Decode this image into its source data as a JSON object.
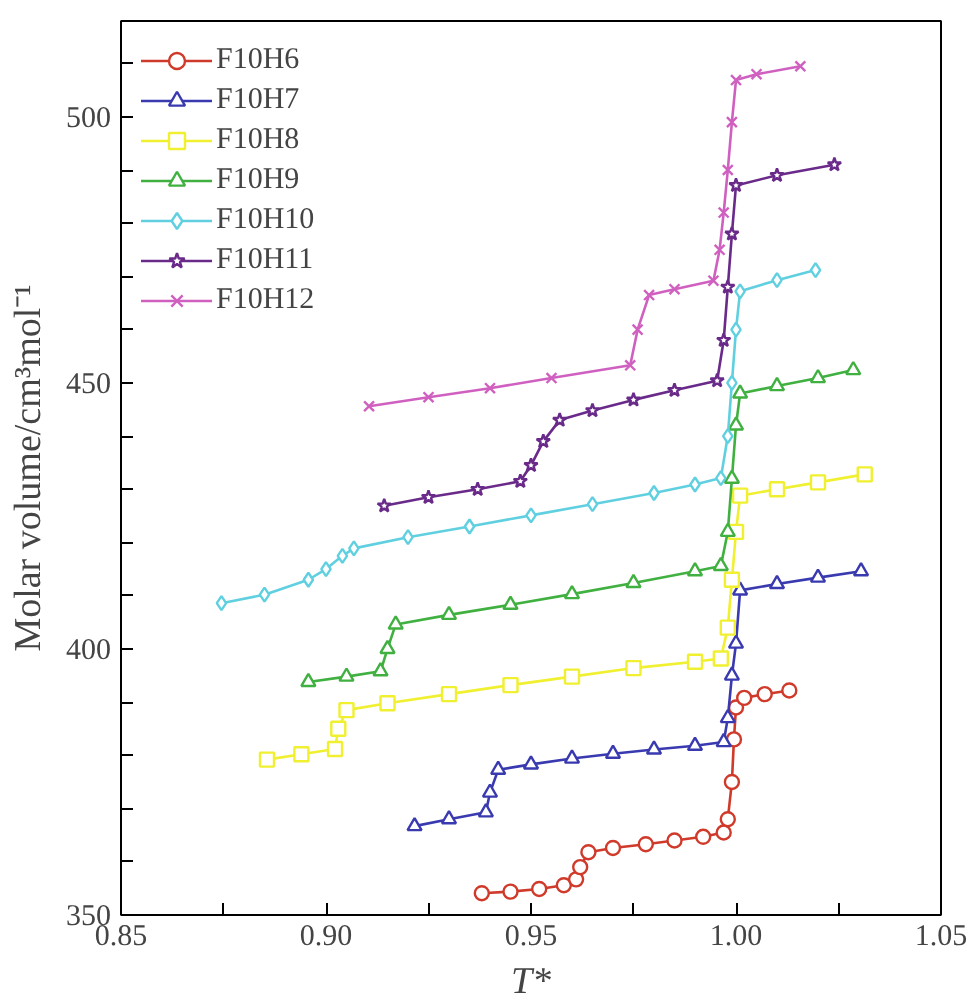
{
  "chart_data": {
    "type": "line",
    "xlabel": "T*",
    "ylabel": "Molar volume/cm³mol⁻¹",
    "xlim": [
      0.85,
      1.05
    ],
    "ylim": [
      350,
      518
    ],
    "xticks": [
      {
        "value": 0.85,
        "label": "0.85"
      },
      {
        "value": 0.875,
        "label": null
      },
      {
        "value": 0.9,
        "label": "0.90"
      },
      {
        "value": 0.925,
        "label": null
      },
      {
        "value": 0.95,
        "label": "0.95"
      },
      {
        "value": 0.975,
        "label": null
      },
      {
        "value": 1.0,
        "label": "1.00"
      },
      {
        "value": 1.025,
        "label": null
      },
      {
        "value": 1.05,
        "label": "1.05"
      }
    ],
    "yticks": [
      350,
      {
        "value": 360,
        "label": null
      },
      {
        "value": 370,
        "label": null
      },
      {
        "value": 380,
        "label": null
      },
      {
        "value": 390,
        "label": null
      },
      400,
      {
        "value": 410,
        "label": null
      },
      {
        "value": 420,
        "label": null
      },
      {
        "value": 430,
        "label": null
      },
      {
        "value": 440,
        "label": null
      },
      450,
      {
        "value": 460,
        "label": null
      },
      {
        "value": 470,
        "label": null
      },
      {
        "value": 480,
        "label": null
      },
      {
        "value": 490,
        "label": null
      },
      500,
      {
        "value": 510,
        "label": null
      }
    ],
    "legend": "top left",
    "grid": false,
    "series": [
      {
        "name": "F10H6",
        "color": "#d03a2a",
        "marker": "circle",
        "x": [
          0.938,
          0.945,
          0.952,
          0.958,
          0.961,
          0.962,
          0.964,
          0.97,
          0.978,
          0.985,
          0.992,
          0.997,
          0.998,
          0.999,
          0.9995,
          1.0,
          1.002,
          1.007,
          1.013
        ],
        "values": [
          354.1,
          354.4,
          354.9,
          355.6,
          356.7,
          359.0,
          361.8,
          362.6,
          363.3,
          364.0,
          364.7,
          365.5,
          368.0,
          375.0,
          383.0,
          389.0,
          390.8,
          391.5,
          392.2
        ]
      },
      {
        "name": "F10H7",
        "color": "#3a3ab0",
        "marker": "triangle",
        "x": [
          0.9216,
          0.93,
          0.939,
          0.94,
          0.942,
          0.95,
          0.96,
          0.97,
          0.98,
          0.99,
          0.997,
          0.998,
          0.999,
          1.0,
          1.001,
          1.01,
          1.02,
          1.0305
        ],
        "values": [
          366.7,
          368.0,
          369.3,
          373.0,
          377.3,
          378.3,
          379.4,
          380.3,
          381.1,
          381.8,
          382.5,
          387.0,
          395.0,
          401.0,
          411.0,
          412.2,
          413.4,
          414.6
        ]
      },
      {
        "name": "F10H8",
        "color": "#f0f030",
        "marker": "square",
        "x": [
          0.8856,
          0.894,
          0.9022,
          0.903,
          0.905,
          0.915,
          0.93,
          0.945,
          0.96,
          0.975,
          0.99,
          0.9963,
          0.998,
          0.999,
          1.0,
          1.001,
          1.01,
          1.02,
          1.0314
        ],
        "values": [
          379.2,
          380.2,
          381.2,
          385.0,
          388.5,
          389.8,
          391.5,
          393.2,
          394.8,
          396.4,
          397.6,
          398.2,
          404.0,
          413.0,
          422.0,
          428.8,
          430.0,
          431.3,
          432.8
        ]
      },
      {
        "name": "F10H9",
        "color": "#40b040",
        "marker": "triangle",
        "x": [
          0.8957,
          0.905,
          0.9133,
          0.915,
          0.917,
          0.93,
          0.945,
          0.96,
          0.975,
          0.99,
          0.9963,
          0.998,
          0.999,
          1.0,
          1.001,
          1.01,
          1.02,
          1.0286
        ],
        "values": [
          393.8,
          394.8,
          395.8,
          400.0,
          404.6,
          406.4,
          408.3,
          410.3,
          412.4,
          414.6,
          415.6,
          422.0,
          432.0,
          442.0,
          448.0,
          449.4,
          450.9,
          452.4
        ]
      },
      {
        "name": "F10H10",
        "color": "#60d0e0",
        "marker": "diamond",
        "x": [
          0.8745,
          0.885,
          0.8957,
          0.9,
          0.904,
          0.9068,
          0.92,
          0.935,
          0.95,
          0.965,
          0.98,
          0.99,
          0.9963,
          0.998,
          0.999,
          1.0,
          1.001,
          1.01,
          1.0194
        ],
        "values": [
          408.6,
          410.2,
          413.0,
          415.0,
          417.5,
          418.9,
          421.0,
          423.0,
          425.1,
          427.2,
          429.3,
          430.9,
          432.1,
          440.0,
          450.0,
          460.0,
          467.2,
          469.3,
          471.2
        ]
      },
      {
        "name": "F10H11",
        "color": "#6a2a8a",
        "marker": "star",
        "x": [
          0.9142,
          0.925,
          0.937,
          0.9474,
          0.95,
          0.953,
          0.957,
          0.965,
          0.975,
          0.985,
          0.9954,
          0.997,
          0.998,
          0.999,
          1.0,
          1.01,
          1.024
        ],
        "values": [
          426.9,
          428.5,
          430.0,
          431.5,
          434.5,
          439.0,
          443.0,
          444.8,
          446.8,
          448.6,
          450.4,
          458.0,
          468.0,
          478.0,
          487.1,
          489.0,
          491.0
        ]
      },
      {
        "name": "F10H12",
        "color": "#d060c0",
        "marker": "x",
        "x": [
          0.9105,
          0.925,
          0.94,
          0.955,
          0.9742,
          0.976,
          0.9788,
          0.985,
          0.9945,
          0.996,
          0.997,
          0.998,
          0.999,
          1.0,
          1.005,
          1.0157
        ],
        "values": [
          445.6,
          447.3,
          449.0,
          450.9,
          453.3,
          460.0,
          466.5,
          467.6,
          469.2,
          475.0,
          482.0,
          490.0,
          499.0,
          506.9,
          508.0,
          509.5
        ]
      }
    ]
  }
}
